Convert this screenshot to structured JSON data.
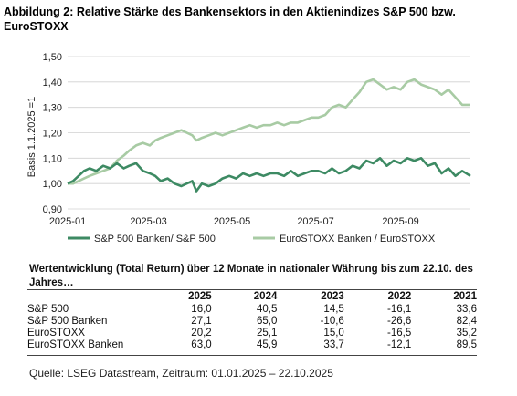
{
  "title": "Abbildung 2: Relative Stärke des Bankensektors in den Aktienindizes S&P 500 bzw. EuroSTOXX",
  "chart_data": {
    "type": "line",
    "ylabel": "Basis 1.1.2025 =1",
    "xlabel": "",
    "ylim": [
      0.9,
      1.5
    ],
    "yticks": [
      "0,90",
      "1,00",
      "1,10",
      "1,20",
      "1,30",
      "1,40",
      "1,50"
    ],
    "yticks_values": [
      0.9,
      1.0,
      1.1,
      1.2,
      1.3,
      1.4,
      1.5
    ],
    "xticks": [
      "2025-01",
      "2025-03",
      "2025-05",
      "2025-07",
      "2025-09"
    ],
    "xticks_values": [
      "2025-01-01",
      "2025-03-01",
      "2025-05-01",
      "2025-07-01",
      "2025-09-01"
    ],
    "xlim": [
      "2025-01-01",
      "2025-10-22"
    ],
    "grid": true,
    "legend_position": "bottom",
    "series": [
      {
        "name": "S&P 500 Banken/ S&P 500",
        "color": "#3d8a63",
        "points": [
          [
            "2025-01-01",
            1.0
          ],
          [
            "2025-01-05",
            1.01
          ],
          [
            "2025-01-09",
            1.03
          ],
          [
            "2025-01-13",
            1.05
          ],
          [
            "2025-01-17",
            1.06
          ],
          [
            "2025-01-22",
            1.05
          ],
          [
            "2025-01-27",
            1.07
          ],
          [
            "2025-02-01",
            1.06
          ],
          [
            "2025-02-06",
            1.08
          ],
          [
            "2025-02-11",
            1.06
          ],
          [
            "2025-02-15",
            1.07
          ],
          [
            "2025-02-20",
            1.08
          ],
          [
            "2025-02-25",
            1.05
          ],
          [
            "2025-03-02",
            1.04
          ],
          [
            "2025-03-06",
            1.03
          ],
          [
            "2025-03-10",
            1.01
          ],
          [
            "2025-03-15",
            1.02
          ],
          [
            "2025-03-20",
            1.0
          ],
          [
            "2025-03-25",
            0.99
          ],
          [
            "2025-03-29",
            1.0
          ],
          [
            "2025-04-02",
            1.01
          ],
          [
            "2025-04-05",
            0.97
          ],
          [
            "2025-04-09",
            1.0
          ],
          [
            "2025-04-14",
            0.99
          ],
          [
            "2025-04-19",
            1.0
          ],
          [
            "2025-04-24",
            1.02
          ],
          [
            "2025-04-29",
            1.03
          ],
          [
            "2025-05-04",
            1.02
          ],
          [
            "2025-05-09",
            1.04
          ],
          [
            "2025-05-14",
            1.03
          ],
          [
            "2025-05-19",
            1.04
          ],
          [
            "2025-05-24",
            1.03
          ],
          [
            "2025-05-29",
            1.04
          ],
          [
            "2025-06-03",
            1.04
          ],
          [
            "2025-06-08",
            1.03
          ],
          [
            "2025-06-13",
            1.05
          ],
          [
            "2025-06-18",
            1.03
          ],
          [
            "2025-06-23",
            1.04
          ],
          [
            "2025-06-28",
            1.05
          ],
          [
            "2025-07-03",
            1.05
          ],
          [
            "2025-07-08",
            1.04
          ],
          [
            "2025-07-13",
            1.06
          ],
          [
            "2025-07-18",
            1.04
          ],
          [
            "2025-07-23",
            1.05
          ],
          [
            "2025-07-28",
            1.07
          ],
          [
            "2025-08-02",
            1.06
          ],
          [
            "2025-08-07",
            1.09
          ],
          [
            "2025-08-12",
            1.08
          ],
          [
            "2025-08-17",
            1.1
          ],
          [
            "2025-08-22",
            1.07
          ],
          [
            "2025-08-27",
            1.09
          ],
          [
            "2025-09-01",
            1.08
          ],
          [
            "2025-09-06",
            1.1
          ],
          [
            "2025-09-11",
            1.09
          ],
          [
            "2025-09-16",
            1.1
          ],
          [
            "2025-09-21",
            1.07
          ],
          [
            "2025-09-26",
            1.08
          ],
          [
            "2025-10-01",
            1.04
          ],
          [
            "2025-10-06",
            1.06
          ],
          [
            "2025-10-11",
            1.03
          ],
          [
            "2025-10-16",
            1.05
          ],
          [
            "2025-10-22",
            1.03
          ]
        ]
      },
      {
        "name": "EuroSTOXX Banken / EuroSTOXX",
        "color": "#a8cba4",
        "points": [
          [
            "2025-01-01",
            1.0
          ],
          [
            "2025-01-05",
            1.0
          ],
          [
            "2025-01-09",
            1.01
          ],
          [
            "2025-01-13",
            1.02
          ],
          [
            "2025-01-17",
            1.03
          ],
          [
            "2025-01-22",
            1.04
          ],
          [
            "2025-01-27",
            1.05
          ],
          [
            "2025-02-01",
            1.06
          ],
          [
            "2025-02-06",
            1.09
          ],
          [
            "2025-02-11",
            1.11
          ],
          [
            "2025-02-15",
            1.13
          ],
          [
            "2025-02-20",
            1.15
          ],
          [
            "2025-02-25",
            1.16
          ],
          [
            "2025-03-02",
            1.15
          ],
          [
            "2025-03-06",
            1.17
          ],
          [
            "2025-03-10",
            1.18
          ],
          [
            "2025-03-15",
            1.19
          ],
          [
            "2025-03-20",
            1.2
          ],
          [
            "2025-03-25",
            1.21
          ],
          [
            "2025-03-29",
            1.2
          ],
          [
            "2025-04-02",
            1.19
          ],
          [
            "2025-04-05",
            1.17
          ],
          [
            "2025-04-09",
            1.18
          ],
          [
            "2025-04-14",
            1.19
          ],
          [
            "2025-04-19",
            1.2
          ],
          [
            "2025-04-24",
            1.19
          ],
          [
            "2025-04-29",
            1.2
          ],
          [
            "2025-05-04",
            1.21
          ],
          [
            "2025-05-09",
            1.22
          ],
          [
            "2025-05-14",
            1.23
          ],
          [
            "2025-05-19",
            1.22
          ],
          [
            "2025-05-24",
            1.23
          ],
          [
            "2025-05-29",
            1.23
          ],
          [
            "2025-06-03",
            1.24
          ],
          [
            "2025-06-08",
            1.23
          ],
          [
            "2025-06-13",
            1.24
          ],
          [
            "2025-06-18",
            1.24
          ],
          [
            "2025-06-23",
            1.25
          ],
          [
            "2025-06-28",
            1.26
          ],
          [
            "2025-07-03",
            1.26
          ],
          [
            "2025-07-08",
            1.27
          ],
          [
            "2025-07-13",
            1.3
          ],
          [
            "2025-07-18",
            1.31
          ],
          [
            "2025-07-23",
            1.3
          ],
          [
            "2025-07-28",
            1.33
          ],
          [
            "2025-08-02",
            1.36
          ],
          [
            "2025-08-07",
            1.4
          ],
          [
            "2025-08-12",
            1.41
          ],
          [
            "2025-08-17",
            1.39
          ],
          [
            "2025-08-22",
            1.37
          ],
          [
            "2025-08-27",
            1.38
          ],
          [
            "2025-09-01",
            1.37
          ],
          [
            "2025-09-06",
            1.4
          ],
          [
            "2025-09-11",
            1.41
          ],
          [
            "2025-09-16",
            1.39
          ],
          [
            "2025-09-21",
            1.38
          ],
          [
            "2025-09-26",
            1.37
          ],
          [
            "2025-10-01",
            1.35
          ],
          [
            "2025-10-06",
            1.37
          ],
          [
            "2025-10-11",
            1.34
          ],
          [
            "2025-10-16",
            1.31
          ],
          [
            "2025-10-22",
            1.31
          ]
        ]
      }
    ]
  },
  "returns_table": {
    "title": "Wertentwicklung (Total Return) über 12 Monate in nationaler Währung bis zum 22.10. des Jahres…",
    "years": [
      "2025",
      "2024",
      "2023",
      "2022",
      "2021"
    ],
    "rows": [
      {
        "label": "S&P 500",
        "values": [
          "16,0",
          "40,5",
          "14,5",
          "-16,1",
          "33,6"
        ]
      },
      {
        "label": "S&P 500 Banken",
        "values": [
          "27,1",
          "65,0",
          "-10,6",
          "-26,6",
          "82,4"
        ]
      },
      {
        "label": "EuroSTOXX",
        "values": [
          "20,2",
          "25,1",
          "15,0",
          "-16,5",
          "35,2"
        ]
      },
      {
        "label": "EuroSTOXX Banken",
        "values": [
          "63,0",
          "45,9",
          "33,7",
          "-12,1",
          "89,5"
        ]
      }
    ]
  },
  "source": "Quelle: LSEG Datastream, Zeitraum: 01.01.2025 – 22.10.2025"
}
